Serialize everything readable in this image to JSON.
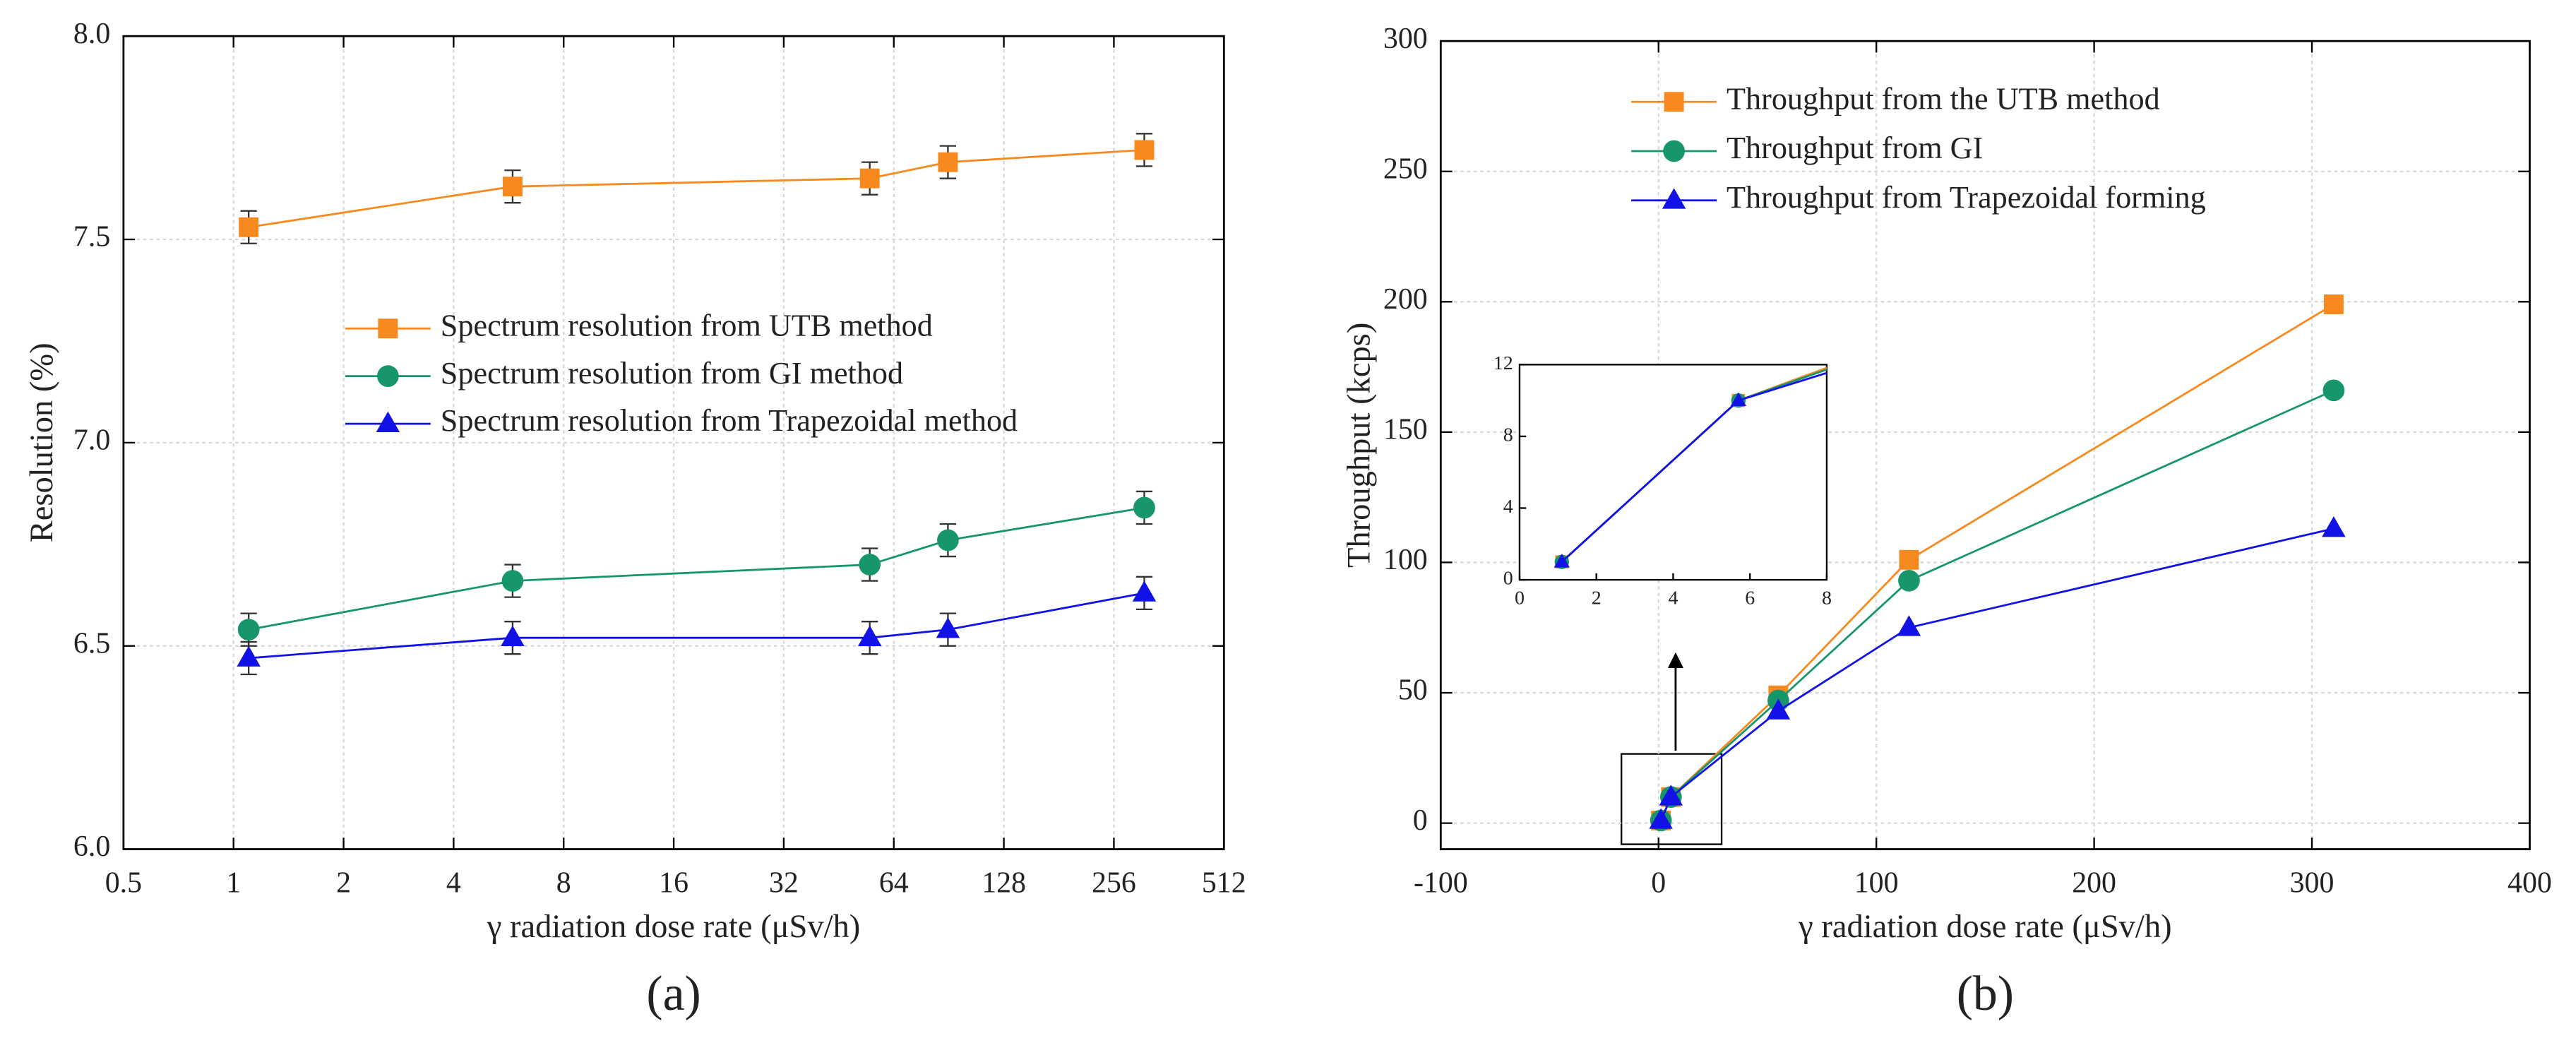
{
  "chart_data": [
    {
      "type": "scatter",
      "panel_label": "(a)",
      "x_label": "γ  radiation dose rate (μSv/h)",
      "y_label": "Resolution (%)",
      "xscale": "log",
      "log_base": 2,
      "xlim": [
        0.5,
        512
      ],
      "xticks": [
        0.5,
        1,
        2,
        4,
        8,
        16,
        32,
        64,
        128,
        256,
        512
      ],
      "ylim": [
        6,
        8
      ],
      "yticks": [
        {
          "value": 6,
          "label": "6.0"
        },
        6.5,
        {
          "value": 7,
          "label": "7.0"
        },
        7.5,
        {
          "value": 8,
          "label": "8.0"
        }
      ],
      "grid": true,
      "legend": "center",
      "x": [
        1.1,
        5.8,
        55,
        90,
        310
      ],
      "series": [
        {
          "name": "Spectrum resolution from UTB method",
          "color": "#f7891f",
          "marker": "square",
          "values": [
            7.53,
            7.63,
            7.65,
            7.69,
            7.72
          ],
          "errors": [
            0.04,
            0.04,
            0.04,
            0.04,
            0.04
          ]
        },
        {
          "name": "Spectrum resolution from GI method",
          "color": "#17956b",
          "marker": "circle",
          "values": [
            6.54,
            6.66,
            6.7,
            6.76,
            6.84
          ],
          "errors": [
            0.04,
            0.04,
            0.04,
            0.04,
            0.04
          ]
        },
        {
          "name": "Spectrum resolution from Trapezoidal method",
          "color": "#1212e6",
          "marker": "triangle",
          "values": [
            6.47,
            6.52,
            6.52,
            6.54,
            6.63
          ],
          "errors": [
            0.04,
            0.04,
            0.04,
            0.04,
            0.04
          ]
        }
      ]
    },
    {
      "type": "line",
      "panel_label": "(b)",
      "x_label": "γ  radiation dose rate (μSv/h)",
      "y_label": "Throughput (kcps)",
      "xlim": [
        -100,
        400
      ],
      "xticks": [
        -100,
        0,
        100,
        200,
        300,
        400
      ],
      "ylim": [
        -10,
        300
      ],
      "yticks": [
        0,
        50,
        100,
        150,
        200,
        250,
        300
      ],
      "grid": true,
      "legend": "upper left",
      "x": [
        1.1,
        5.7,
        55,
        115,
        310
      ],
      "series": [
        {
          "name": "Throughput from the UTB method",
          "color": "#f7891f",
          "marker": "square",
          "values": [
            1,
            10,
            49,
            101,
            199
          ]
        },
        {
          "name": "Throughput from GI",
          "color": "#17956b",
          "marker": "circle",
          "values": [
            1,
            10,
            47,
            93,
            166
          ]
        },
        {
          "name": "Throughput from Trapezoidal forming",
          "color": "#1212e6",
          "marker": "triangle",
          "values": [
            1,
            10,
            43,
            75,
            113
          ]
        }
      ],
      "inset": {
        "xlim": [
          0,
          8
        ],
        "xticks": [
          0,
          2,
          4,
          6,
          8
        ],
        "ylim": [
          0,
          12
        ],
        "yticks": [
          0,
          4,
          8,
          12
        ]
      }
    }
  ]
}
